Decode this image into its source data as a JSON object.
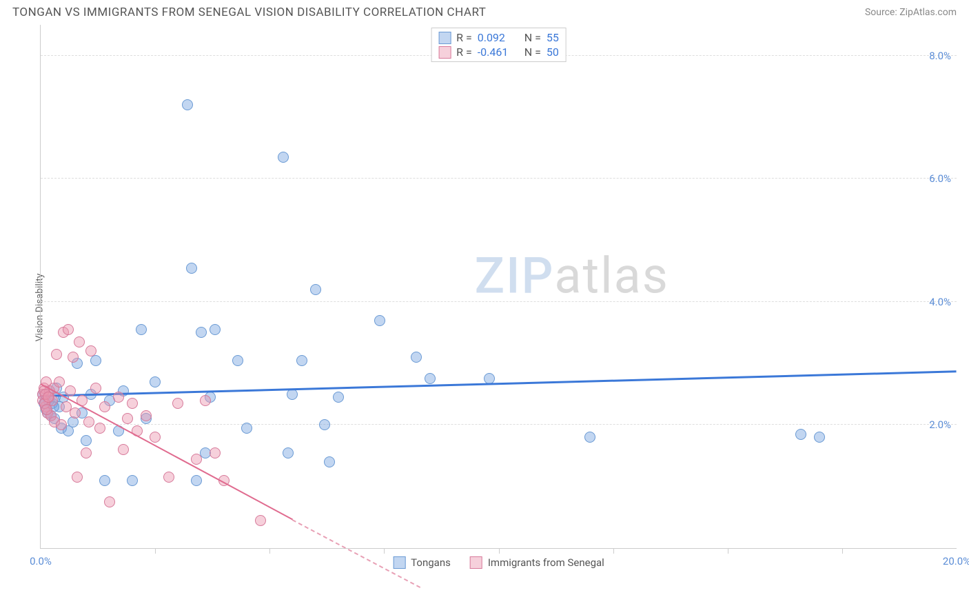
{
  "header": {
    "title": "TONGAN VS IMMIGRANTS FROM SENEGAL VISION DISABILITY CORRELATION CHART",
    "source": "Source: ZipAtlas.com"
  },
  "ylabel": "Vision Disability",
  "watermark": {
    "part1": "ZIP",
    "part2": "atlas"
  },
  "chart": {
    "type": "scatter",
    "xlim": [
      0,
      20
    ],
    "ylim": [
      0,
      8.5
    ],
    "background_color": "#ffffff",
    "grid_color": "#dddddd",
    "yticks": [
      {
        "value": 2.0,
        "label": "2.0%"
      },
      {
        "value": 4.0,
        "label": "4.0%"
      },
      {
        "value": 6.0,
        "label": "6.0%"
      },
      {
        "value": 8.0,
        "label": "8.0%"
      }
    ],
    "xticks_minor": [
      2.5,
      5,
      7.5,
      10,
      12.5,
      15,
      17.5
    ],
    "xlabels": [
      {
        "value": 0,
        "label": "0.0%"
      },
      {
        "value": 20,
        "label": "20.0%"
      }
    ],
    "marker_radius": 8,
    "marker_border_width": 1,
    "series": [
      {
        "id": "tongans",
        "label": "Tongans",
        "fill_color": "rgba(120,165,225,0.45)",
        "stroke_color": "#6a9ad4",
        "trend": {
          "x1": 0,
          "y1": 2.45,
          "x2": 20,
          "y2": 2.85,
          "color": "#3b78d8",
          "width": 3
        },
        "points": [
          [
            0.1,
            2.4
          ],
          [
            0.15,
            2.2
          ],
          [
            0.2,
            2.55
          ],
          [
            0.25,
            2.35
          ],
          [
            0.3,
            2.1
          ],
          [
            0.35,
            2.6
          ],
          [
            0.4,
            2.3
          ],
          [
            0.45,
            1.95
          ],
          [
            0.5,
            2.45
          ],
          [
            0.6,
            1.9
          ],
          [
            0.7,
            2.05
          ],
          [
            0.8,
            3.0
          ],
          [
            0.9,
            2.2
          ],
          [
            1.0,
            1.75
          ],
          [
            1.1,
            2.5
          ],
          [
            1.2,
            3.05
          ],
          [
            1.4,
            1.1
          ],
          [
            1.5,
            2.4
          ],
          [
            1.7,
            1.9
          ],
          [
            1.8,
            2.55
          ],
          [
            2.0,
            1.1
          ],
          [
            2.2,
            3.55
          ],
          [
            2.3,
            2.1
          ],
          [
            2.5,
            2.7
          ],
          [
            3.2,
            7.2
          ],
          [
            3.3,
            4.55
          ],
          [
            3.4,
            1.1
          ],
          [
            3.5,
            3.5
          ],
          [
            3.6,
            1.55
          ],
          [
            3.7,
            2.45
          ],
          [
            3.8,
            3.55
          ],
          [
            4.3,
            3.05
          ],
          [
            4.5,
            1.95
          ],
          [
            5.3,
            6.35
          ],
          [
            5.4,
            1.55
          ],
          [
            5.5,
            2.5
          ],
          [
            5.7,
            3.05
          ],
          [
            6.0,
            4.2
          ],
          [
            6.2,
            2.0
          ],
          [
            6.3,
            1.4
          ],
          [
            6.5,
            2.45
          ],
          [
            7.4,
            3.7
          ],
          [
            8.2,
            3.1
          ],
          [
            8.5,
            2.75
          ],
          [
            9.8,
            2.75
          ],
          [
            12.0,
            1.8
          ],
          [
            16.6,
            1.85
          ],
          [
            17.0,
            1.8
          ],
          [
            0.05,
            2.5
          ],
          [
            0.08,
            2.35
          ],
          [
            0.12,
            2.25
          ],
          [
            0.18,
            2.4
          ],
          [
            0.22,
            2.15
          ],
          [
            0.28,
            2.3
          ],
          [
            0.32,
            2.45
          ]
        ]
      },
      {
        "id": "senegal",
        "label": "Immigrants from Senegal",
        "fill_color": "rgba(235,150,175,0.45)",
        "stroke_color": "#d77a9a",
        "trend_solid": {
          "x1": 0,
          "y1": 2.65,
          "x2": 5.5,
          "y2": 0.45,
          "color": "#e06b8f",
          "width": 2
        },
        "trend_dashed": {
          "x1": 5.5,
          "y1": 0.45,
          "x2": 8.3,
          "y2": -0.65,
          "color": "#e8a0b5",
          "width": 2
        },
        "points": [
          [
            0.05,
            2.5
          ],
          [
            0.08,
            2.6
          ],
          [
            0.1,
            2.3
          ],
          [
            0.12,
            2.7
          ],
          [
            0.15,
            2.2
          ],
          [
            0.18,
            2.45
          ],
          [
            0.2,
            2.55
          ],
          [
            0.22,
            2.15
          ],
          [
            0.25,
            2.4
          ],
          [
            0.28,
            2.6
          ],
          [
            0.3,
            2.05
          ],
          [
            0.35,
            3.15
          ],
          [
            0.4,
            2.7
          ],
          [
            0.45,
            2.0
          ],
          [
            0.5,
            3.5
          ],
          [
            0.55,
            2.3
          ],
          [
            0.6,
            3.55
          ],
          [
            0.65,
            2.55
          ],
          [
            0.7,
            3.1
          ],
          [
            0.75,
            2.2
          ],
          [
            0.8,
            1.15
          ],
          [
            0.85,
            3.35
          ],
          [
            0.9,
            2.4
          ],
          [
            1.0,
            1.55
          ],
          [
            1.05,
            2.05
          ],
          [
            1.1,
            3.2
          ],
          [
            1.2,
            2.6
          ],
          [
            1.3,
            1.95
          ],
          [
            1.4,
            2.3
          ],
          [
            1.5,
            0.75
          ],
          [
            1.7,
            2.45
          ],
          [
            1.8,
            1.6
          ],
          [
            1.9,
            2.1
          ],
          [
            2.0,
            2.35
          ],
          [
            2.1,
            1.9
          ],
          [
            2.3,
            2.15
          ],
          [
            2.5,
            1.8
          ],
          [
            2.8,
            1.15
          ],
          [
            3.0,
            2.35
          ],
          [
            3.4,
            1.45
          ],
          [
            3.6,
            2.4
          ],
          [
            3.8,
            1.55
          ],
          [
            4.0,
            1.1
          ],
          [
            4.8,
            0.45
          ],
          [
            0.05,
            2.4
          ],
          [
            0.07,
            2.55
          ],
          [
            0.09,
            2.35
          ],
          [
            0.11,
            2.5
          ],
          [
            0.13,
            2.25
          ],
          [
            0.16,
            2.45
          ]
        ]
      }
    ]
  },
  "legend_top": {
    "rows": [
      {
        "swatch_fill": "rgba(120,165,225,0.45)",
        "swatch_stroke": "#6a9ad4",
        "r_label": "R =",
        "r_value": "0.092",
        "n_label": "N =",
        "n_value": "55"
      },
      {
        "swatch_fill": "rgba(235,150,175,0.45)",
        "swatch_stroke": "#d77a9a",
        "r_label": "R =",
        "r_value": "-0.461",
        "n_label": "N =",
        "n_value": "50"
      }
    ]
  },
  "legend_bottom": {
    "items": [
      {
        "swatch_fill": "rgba(120,165,225,0.45)",
        "swatch_stroke": "#6a9ad4",
        "label": "Tongans"
      },
      {
        "swatch_fill": "rgba(235,150,175,0.45)",
        "swatch_stroke": "#d77a9a",
        "label": "Immigrants from Senegal"
      }
    ]
  }
}
